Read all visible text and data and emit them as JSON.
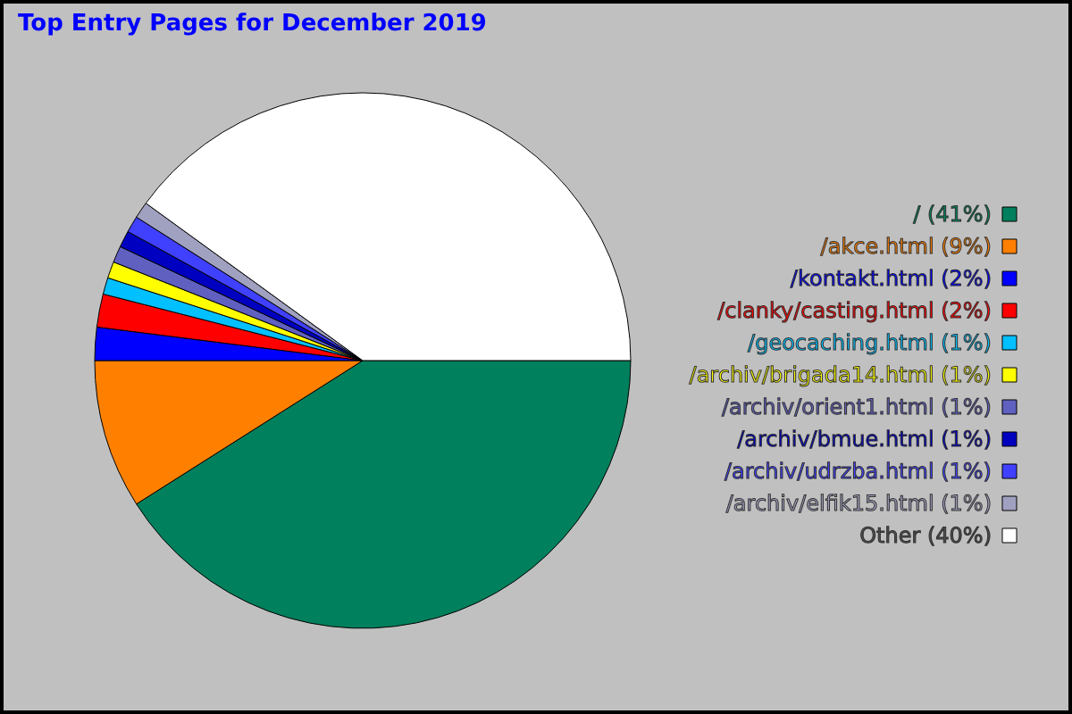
{
  "chart_data": {
    "type": "pie",
    "title": "Top Entry Pages for December 2019",
    "categories": [
      "/",
      "/akce.html",
      "/kontakt.html",
      "/clanky/casting.html",
      "/geocaching.html",
      "/archiv/brigada14.html",
      "/archiv/orient1.html",
      "/archiv/bmue.html",
      "/archiv/udrzba.html",
      "/archiv/elfik15.html",
      "Other"
    ],
    "values": [
      41,
      9,
      2,
      2,
      1,
      1,
      1,
      1,
      1,
      1,
      40
    ],
    "value_labels": [
      "(41%)",
      "(9%)",
      "(2%)",
      "(2%)",
      "(1%)",
      "(1%)",
      "(1%)",
      "(1%)",
      "(1%)",
      "(1%)",
      "(40%)"
    ],
    "colors": [
      "#00805c",
      "#ff8000",
      "#0000ff",
      "#ff0000",
      "#00c0ff",
      "#ffff00",
      "#6060c0",
      "#0000c0",
      "#4040ff",
      "#a0a0c0",
      "#ffffff"
    ],
    "legend": "right"
  }
}
